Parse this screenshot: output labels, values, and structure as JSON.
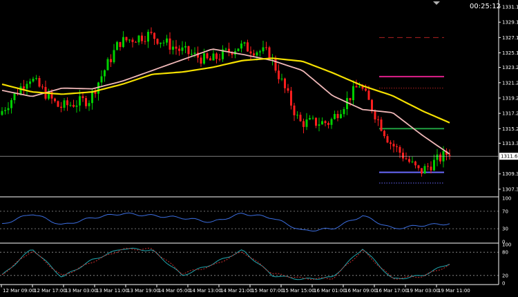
{
  "clock": "00:25:12",
  "colors": {
    "background": "#000000",
    "bull_candle": "#00d000",
    "bear_candle": "#ff1e1e",
    "ma_fast": "#f0b8b8",
    "ma_slow": "#f5e000",
    "rsi_line": "#3c6ee0",
    "stoch_main": "#22a8b0",
    "stoch_signal": "#d03030",
    "axis": "#ffffff",
    "level_red": "#b02020",
    "level_magenta": "#e0208c",
    "level_green": "#20a040",
    "level_blue": "#6a6aff"
  },
  "chart_data": [
    {
      "type": "candlestick",
      "title": "",
      "y_ticks": [
        "1331.10",
        "1329.10",
        "1327.10",
        "1325.10",
        "1323.20",
        "1321.20",
        "1319.20",
        "1317.20",
        "1315.20",
        "1313.30",
        "1309.30",
        "1307.30"
      ],
      "ylim": [
        1306.3,
        1332.0
      ],
      "current_price": "1311.60",
      "x_ticks": [
        "12 Mar 09:00",
        "12 Mar 17:00",
        "13 Mar 03:00",
        "13 Mar 11:00",
        "13 Mar 19:00",
        "14 Mar 05:00",
        "14 Mar 13:00",
        "14 Mar 21:00",
        "15 Mar 07:00",
        "15 Mar 15:00",
        "16 Mar 01:00",
        "16 Mar 09:00",
        "16 Mar 17:00",
        "19 Mar 03:00",
        "19 Mar 11:00"
      ],
      "candle_count": 145,
      "closes_by_tick": [
        1317.0,
        1322.0,
        1318.0,
        1319.0,
        1326.5,
        1327.5,
        1325.5,
        1324.0,
        1326.0,
        1325.0,
        1316.0,
        1316.0,
        1321.0,
        1313.5,
        1309.5,
        1312.2
      ],
      "horizontal_levels": [
        {
          "price": 1327.1,
          "style": "dashed",
          "color": "level_red"
        },
        {
          "price": 1322.0,
          "style": "solid",
          "color": "level_magenta"
        },
        {
          "price": 1320.5,
          "style": "dotted",
          "color": "level_red"
        },
        {
          "price": 1315.2,
          "style": "solid",
          "color": "level_green"
        },
        {
          "price": 1309.5,
          "style": "solid",
          "color": "level_blue"
        },
        {
          "price": 1308.1,
          "style": "dotted",
          "color": "level_blue"
        }
      ],
      "series": [
        {
          "name": "",
          "kind": "ma_fast",
          "values": [
            1320.2,
            1319.4,
            1320.5,
            1320.4,
            1321.4,
            1322.8,
            1324.2,
            1325.6,
            1324.9,
            1324.1,
            1322.8,
            1319.5,
            1317.7,
            1317.3,
            1314.3,
            1311.6
          ]
        },
        {
          "name": "",
          "kind": "ma_slow",
          "values": [
            1321.0,
            1320.0,
            1319.7,
            1320.0,
            1321.0,
            1322.3,
            1322.6,
            1323.2,
            1324.1,
            1324.4,
            1324.0,
            1322.5,
            1320.8,
            1319.5,
            1317.5,
            1315.8
          ]
        }
      ]
    },
    {
      "type": "line",
      "title": "",
      "y_ticks": [
        "100",
        "70",
        "30",
        "0"
      ],
      "ylim": [
        0,
        100
      ],
      "levels": [
        70,
        30
      ],
      "series": [
        {
          "name": "",
          "kind": "rsi_line",
          "values": [
            40,
            65,
            38,
            55,
            65,
            60,
            55,
            45,
            65,
            55,
            25,
            30,
            60,
            30,
            38,
            42
          ]
        }
      ]
    },
    {
      "type": "line",
      "title": "",
      "y_ticks": [
        "100",
        "80",
        "20",
        "0"
      ],
      "ylim": [
        0,
        100
      ],
      "levels": [
        80,
        20
      ],
      "series": [
        {
          "name": "",
          "kind": "stoch_main",
          "values": [
            20,
            90,
            15,
            60,
            90,
            85,
            20,
            50,
            85,
            20,
            10,
            15,
            90,
            10,
            20,
            55
          ]
        },
        {
          "name": "",
          "kind": "stoch_signal",
          "values": [
            22,
            85,
            18,
            55,
            88,
            88,
            25,
            45,
            82,
            25,
            12,
            12,
            85,
            12,
            18,
            50
          ]
        }
      ]
    }
  ]
}
